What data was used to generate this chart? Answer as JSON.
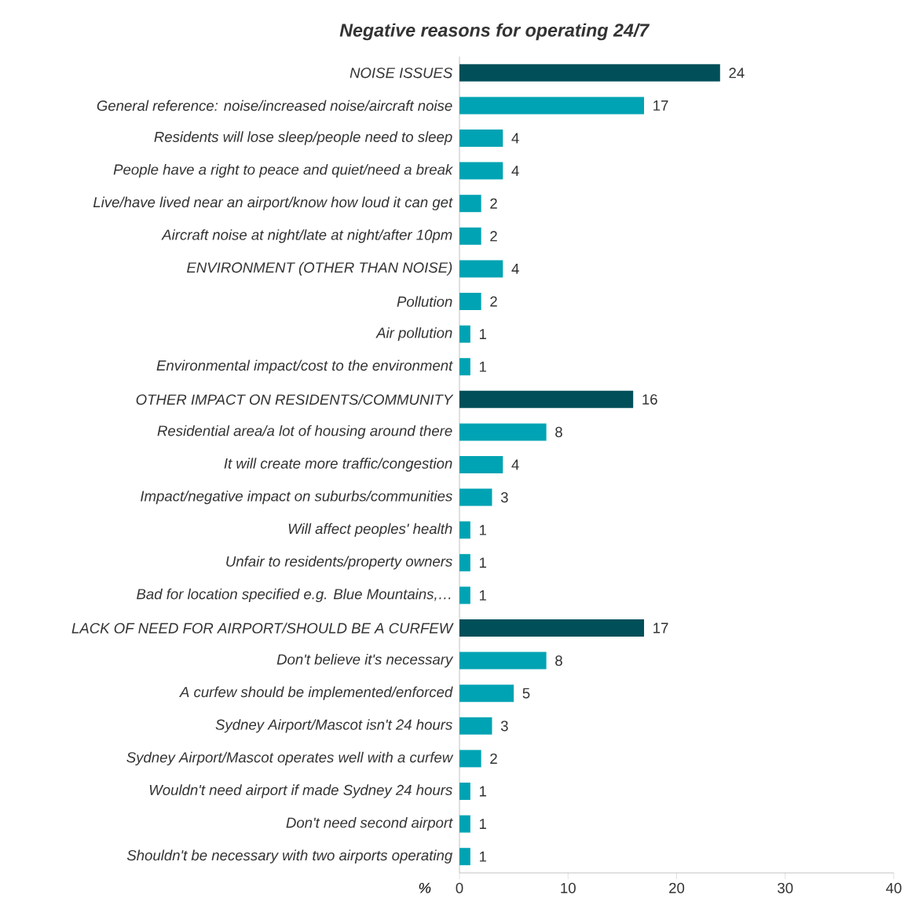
{
  "chart_data": {
    "type": "bar",
    "orientation": "horizontal",
    "title": "Negative reasons for operating 24/7",
    "xlabel": "%",
    "categories": [
      "NOISE ISSUES",
      "General reference: noise/increased noise/aircraft noise",
      "Residents will lose sleep/people need to sleep",
      "People have a right to peace and quiet/need a break",
      "Live/have lived near an airport/know how loud it can get",
      "Aircraft noise at night/late at night/after 10pm",
      "ENVIRONMENT (OTHER THAN NOISE)",
      "Pollution",
      "Air pollution",
      "Environmental impact/cost to the environment",
      "OTHER IMPACT ON RESIDENTS/COMMUNITY",
      "Residential area/a lot of housing around there",
      "It will create more traffic/congestion",
      "Impact/negative impact on suburbs/communities",
      "Will affect peoples' health",
      "Unfair to residents/property owners",
      "Bad for location specified e.g. Blue Mountains,…",
      "LACK OF NEED FOR AIRPORT/SHOULD BE A CURFEW",
      "Don't believe it's necessary",
      "A curfew should be implemented/enforced",
      "Sydney Airport/Mascot isn't 24 hours",
      "Sydney Airport/Mascot operates well with a curfew",
      "Wouldn't need airport if made Sydney 24 hours",
      "Don't need second airport",
      "Shouldn't be necessary with two airports operating"
    ],
    "values": [
      24,
      17,
      4,
      4,
      2,
      2,
      4,
      2,
      1,
      1,
      16,
      8,
      4,
      3,
      1,
      1,
      1,
      17,
      8,
      5,
      3,
      2,
      1,
      1,
      1
    ],
    "colors": [
      "#004f59",
      "#00a3b3",
      "#00a3b3",
      "#00a3b3",
      "#00a3b3",
      "#00a3b3",
      "#00a3b3",
      "#00a3b3",
      "#00a3b3",
      "#00a3b3",
      "#004f59",
      "#00a3b3",
      "#00a3b3",
      "#00a3b3",
      "#00a3b3",
      "#00a3b3",
      "#00a3b3",
      "#004f59",
      "#00a3b3",
      "#00a3b3",
      "#00a3b3",
      "#00a3b3",
      "#00a3b3",
      "#00a3b3",
      "#00a3b3"
    ],
    "data_labels": true,
    "xlim": [
      0,
      40
    ],
    "xticks": [
      0,
      10,
      20,
      30,
      40
    ]
  }
}
